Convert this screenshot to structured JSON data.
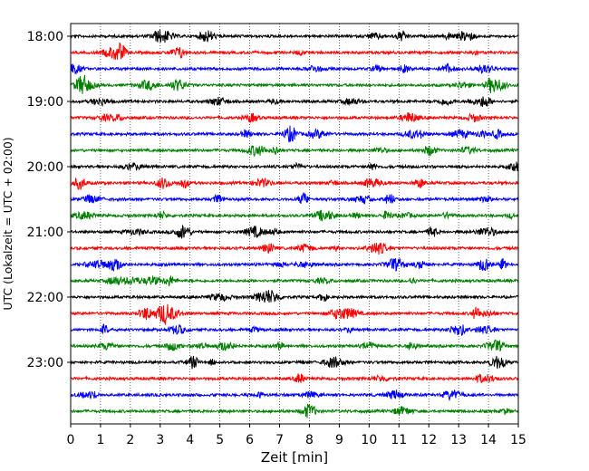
{
  "chart_data": {
    "type": "line",
    "title": "",
    "xlabel": "Zeit  [min]",
    "ylabel": "UTC (Lokalzeit = UTC + 02:00)",
    "xlim": [
      0,
      15
    ],
    "x_ticks": [
      "0",
      "1",
      "2",
      "3",
      "4",
      "5",
      "6",
      "7",
      "8",
      "9",
      "10",
      "11",
      "12",
      "13",
      "14",
      "15"
    ],
    "y_tick_labels": [
      "18:00",
      "19:00",
      "20:00",
      "21:00",
      "22:00",
      "23:00"
    ],
    "grid": "vertical dotted",
    "legend": "none",
    "trace_colors": [
      "#000000",
      "#ff0000",
      "#0000ff",
      "#008000"
    ],
    "traces": [
      {
        "start": "18:00",
        "color": "#000000"
      },
      {
        "start": "18:15",
        "color": "#ff0000"
      },
      {
        "start": "18:30",
        "color": "#0000ff"
      },
      {
        "start": "18:45",
        "color": "#008000"
      },
      {
        "start": "19:00",
        "color": "#000000"
      },
      {
        "start": "19:15",
        "color": "#ff0000"
      },
      {
        "start": "19:30",
        "color": "#0000ff"
      },
      {
        "start": "19:45",
        "color": "#008000"
      },
      {
        "start": "20:00",
        "color": "#000000"
      },
      {
        "start": "20:15",
        "color": "#ff0000"
      },
      {
        "start": "20:30",
        "color": "#0000ff"
      },
      {
        "start": "20:45",
        "color": "#008000"
      },
      {
        "start": "21:00",
        "color": "#000000"
      },
      {
        "start": "21:15",
        "color": "#ff0000"
      },
      {
        "start": "21:30",
        "color": "#0000ff"
      },
      {
        "start": "21:45",
        "color": "#008000"
      },
      {
        "start": "22:00",
        "color": "#000000"
      },
      {
        "start": "22:15",
        "color": "#ff0000"
      },
      {
        "start": "22:30",
        "color": "#0000ff"
      },
      {
        "start": "22:45",
        "color": "#008000"
      },
      {
        "start": "23:00",
        "color": "#000000"
      },
      {
        "start": "23:15",
        "color": "#ff0000"
      },
      {
        "start": "23:30",
        "color": "#0000ff"
      },
      {
        "start": "23:45",
        "color": "#008000"
      }
    ]
  }
}
